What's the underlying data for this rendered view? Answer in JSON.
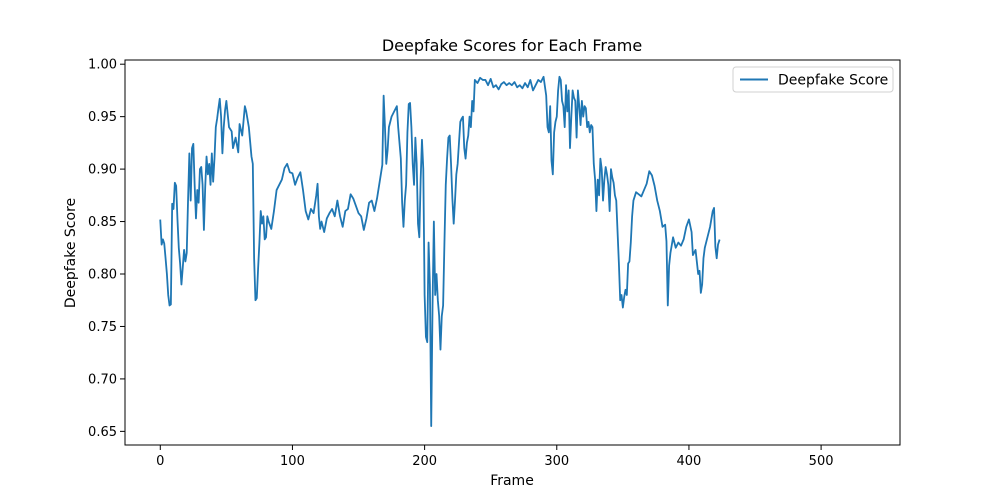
{
  "chart_data": {
    "type": "line",
    "title": "Deepfake Scores for Each Frame",
    "xlabel": "Frame",
    "ylabel": "Deepfake Score",
    "xlim": [
      -26.7,
      559.7
    ],
    "ylim": [
      0.637,
      1.004
    ],
    "xticks": [
      0,
      100,
      200,
      300,
      400,
      500
    ],
    "yticks": [
      0.65,
      0.7,
      0.75,
      0.8,
      0.85,
      0.9,
      0.95,
      1.0
    ],
    "xtick_labels": [
      "0",
      "100",
      "200",
      "300",
      "400",
      "500"
    ],
    "ytick_labels": [
      "0.65",
      "0.70",
      "0.75",
      "0.80",
      "0.85",
      "0.90",
      "0.95",
      "1.00"
    ],
    "grid": false,
    "legend": {
      "position": "top-right",
      "entries": [
        "Deepfake Score"
      ]
    },
    "series": [
      {
        "name": "Deepfake Score",
        "color": "#1f77b4",
        "points": [
          [
            0,
            0.851
          ],
          [
            1,
            0.828
          ],
          [
            2,
            0.833
          ],
          [
            3,
            0.829
          ],
          [
            4,
            0.815
          ],
          [
            5,
            0.8
          ],
          [
            6,
            0.78
          ],
          [
            7,
            0.77
          ],
          [
            8,
            0.771
          ],
          [
            9,
            0.867
          ],
          [
            10,
            0.862
          ],
          [
            11,
            0.887
          ],
          [
            12,
            0.884
          ],
          [
            13,
            0.852
          ],
          [
            14,
            0.825
          ],
          [
            15,
            0.81
          ],
          [
            16,
            0.79
          ],
          [
            17,
            0.806
          ],
          [
            18,
            0.823
          ],
          [
            19,
            0.812
          ],
          [
            20,
            0.82
          ],
          [
            21,
            0.87
          ],
          [
            22,
            0.915
          ],
          [
            23,
            0.87
          ],
          [
            24,
            0.92
          ],
          [
            25,
            0.924
          ],
          [
            26,
            0.885
          ],
          [
            27,
            0.853
          ],
          [
            28,
            0.88
          ],
          [
            29,
            0.868
          ],
          [
            30,
            0.9
          ],
          [
            31,
            0.902
          ],
          [
            32,
            0.885
          ],
          [
            33,
            0.842
          ],
          [
            34,
            0.883
          ],
          [
            35,
            0.912
          ],
          [
            36,
            0.895
          ],
          [
            37,
            0.905
          ],
          [
            38,
            0.885
          ],
          [
            39,
            0.915
          ],
          [
            40,
            0.888
          ],
          [
            41,
            0.91
          ],
          [
            42,
            0.94
          ],
          [
            43,
            0.948
          ],
          [
            44,
            0.958
          ],
          [
            45,
            0.967
          ],
          [
            46,
            0.95
          ],
          [
            47,
            0.915
          ],
          [
            48,
            0.94
          ],
          [
            49,
            0.956
          ],
          [
            50,
            0.965
          ],
          [
            52,
            0.94
          ],
          [
            54,
            0.936
          ],
          [
            55,
            0.92
          ],
          [
            57,
            0.93
          ],
          [
            59,
            0.916
          ],
          [
            60,
            0.943
          ],
          [
            62,
            0.932
          ],
          [
            64,
            0.96
          ],
          [
            65,
            0.955
          ],
          [
            67,
            0.94
          ],
          [
            69,
            0.912
          ],
          [
            70,
            0.905
          ],
          [
            71,
            0.815
          ],
          [
            72,
            0.775
          ],
          [
            73,
            0.777
          ],
          [
            74,
            0.805
          ],
          [
            75,
            0.83
          ],
          [
            76,
            0.86
          ],
          [
            77,
            0.848
          ],
          [
            78,
            0.855
          ],
          [
            79,
            0.833
          ],
          [
            80,
            0.835
          ],
          [
            81,
            0.855
          ],
          [
            82,
            0.85
          ],
          [
            84,
            0.843
          ],
          [
            86,
            0.86
          ],
          [
            88,
            0.88
          ],
          [
            90,
            0.885
          ],
          [
            92,
            0.89
          ],
          [
            94,
            0.901
          ],
          [
            96,
            0.905
          ],
          [
            98,
            0.897
          ],
          [
            100,
            0.896
          ],
          [
            102,
            0.885
          ],
          [
            104,
            0.892
          ],
          [
            106,
            0.897
          ],
          [
            108,
            0.88
          ],
          [
            110,
            0.86
          ],
          [
            112,
            0.852
          ],
          [
            114,
            0.862
          ],
          [
            116,
            0.858
          ],
          [
            118,
            0.875
          ],
          [
            119,
            0.886
          ],
          [
            120,
            0.855
          ],
          [
            121,
            0.843
          ],
          [
            122,
            0.85
          ],
          [
            124,
            0.84
          ],
          [
            126,
            0.853
          ],
          [
            128,
            0.858
          ],
          [
            130,
            0.862
          ],
          [
            132,
            0.855
          ],
          [
            134,
            0.87
          ],
          [
            136,
            0.855
          ],
          [
            138,
            0.845
          ],
          [
            140,
            0.86
          ],
          [
            142,
            0.862
          ],
          [
            144,
            0.876
          ],
          [
            146,
            0.872
          ],
          [
            148,
            0.865
          ],
          [
            150,
            0.858
          ],
          [
            152,
            0.855
          ],
          [
            154,
            0.842
          ],
          [
            156,
            0.853
          ],
          [
            158,
            0.868
          ],
          [
            160,
            0.87
          ],
          [
            162,
            0.86
          ],
          [
            164,
            0.872
          ],
          [
            166,
            0.888
          ],
          [
            168,
            0.904
          ],
          [
            169,
            0.97
          ],
          [
            170,
            0.94
          ],
          [
            171,
            0.905
          ],
          [
            172,
            0.918
          ],
          [
            173,
            0.94
          ],
          [
            175,
            0.95
          ],
          [
            177,
            0.955
          ],
          [
            179,
            0.96
          ],
          [
            180,
            0.94
          ],
          [
            181,
            0.925
          ],
          [
            182,
            0.91
          ],
          [
            183,
            0.868
          ],
          [
            184,
            0.845
          ],
          [
            185,
            0.87
          ],
          [
            186,
            0.885
          ],
          [
            187,
            0.935
          ],
          [
            188,
            0.962
          ],
          [
            189,
            0.963
          ],
          [
            190,
            0.94
          ],
          [
            191,
            0.905
          ],
          [
            192,
            0.885
          ],
          [
            193,
            0.93
          ],
          [
            194,
            0.905
          ],
          [
            195,
            0.848
          ],
          [
            196,
            0.835
          ],
          [
            197,
            0.89
          ],
          [
            198,
            0.928
          ],
          [
            199,
            0.9
          ],
          [
            200,
            0.78
          ],
          [
            201,
            0.74
          ],
          [
            202,
            0.735
          ],
          [
            203,
            0.83
          ],
          [
            204,
            0.79
          ],
          [
            205,
            0.655
          ],
          [
            206,
            0.77
          ],
          [
            207,
            0.85
          ],
          [
            208,
            0.78
          ],
          [
            209,
            0.8
          ],
          [
            210,
            0.775
          ],
          [
            211,
            0.76
          ],
          [
            212,
            0.728
          ],
          [
            213,
            0.76
          ],
          [
            214,
            0.77
          ],
          [
            215,
            0.83
          ],
          [
            216,
            0.885
          ],
          [
            217,
            0.91
          ],
          [
            218,
            0.93
          ],
          [
            219,
            0.932
          ],
          [
            220,
            0.905
          ],
          [
            221,
            0.872
          ],
          [
            222,
            0.848
          ],
          [
            223,
            0.87
          ],
          [
            224,
            0.895
          ],
          [
            225,
            0.905
          ],
          [
            226,
            0.925
          ],
          [
            227,
            0.945
          ],
          [
            228,
            0.948
          ],
          [
            229,
            0.95
          ],
          [
            230,
            0.92
          ],
          [
            231,
            0.91
          ],
          [
            232,
            0.925
          ],
          [
            233,
            0.932
          ],
          [
            234,
            0.95
          ],
          [
            235,
            0.94
          ],
          [
            236,
            0.965
          ],
          [
            237,
            0.955
          ],
          [
            238,
            0.985
          ],
          [
            240,
            0.982
          ],
          [
            242,
            0.987
          ],
          [
            244,
            0.985
          ],
          [
            246,
            0.985
          ],
          [
            248,
            0.98
          ],
          [
            250,
            0.986
          ],
          [
            252,
            0.978
          ],
          [
            254,
            0.98
          ],
          [
            256,
            0.976
          ],
          [
            258,
            0.981
          ],
          [
            260,
            0.983
          ],
          [
            262,
            0.98
          ],
          [
            264,
            0.982
          ],
          [
            266,
            0.98
          ],
          [
            268,
            0.983
          ],
          [
            270,
            0.978
          ],
          [
            272,
            0.98
          ],
          [
            274,
            0.977
          ],
          [
            276,
            0.982
          ],
          [
            278,
            0.978
          ],
          [
            280,
            0.985
          ],
          [
            282,
            0.975
          ],
          [
            284,
            0.98
          ],
          [
            286,
            0.985
          ],
          [
            288,
            0.983
          ],
          [
            290,
            0.988
          ],
          [
            292,
            0.97
          ],
          [
            293,
            0.94
          ],
          [
            294,
            0.935
          ],
          [
            295,
            0.96
          ],
          [
            296,
            0.908
          ],
          [
            297,
            0.895
          ],
          [
            298,
            0.935
          ],
          [
            299,
            0.945
          ],
          [
            300,
            0.95
          ],
          [
            301,
            0.975
          ],
          [
            302,
            0.988
          ],
          [
            303,
            0.985
          ],
          [
            304,
            0.965
          ],
          [
            305,
            0.96
          ],
          [
            306,
            0.94
          ],
          [
            307,
            0.98
          ],
          [
            308,
            0.955
          ],
          [
            309,
            0.975
          ],
          [
            310,
            0.92
          ],
          [
            311,
            0.95
          ],
          [
            312,
            0.975
          ],
          [
            313,
            0.968
          ],
          [
            314,
            0.965
          ],
          [
            315,
            0.93
          ],
          [
            316,
            0.975
          ],
          [
            317,
            0.96
          ],
          [
            318,
            0.942
          ],
          [
            319,
            0.965
          ],
          [
            320,
            0.95
          ],
          [
            321,
            0.96
          ],
          [
            322,
            0.958
          ],
          [
            323,
            0.94
          ],
          [
            324,
            0.945
          ],
          [
            325,
            0.935
          ],
          [
            326,
            0.942
          ],
          [
            327,
            0.94
          ],
          [
            328,
            0.905
          ],
          [
            329,
            0.89
          ],
          [
            330,
            0.86
          ],
          [
            331,
            0.89
          ],
          [
            332,
            0.875
          ],
          [
            333,
            0.91
          ],
          [
            334,
            0.9
          ],
          [
            335,
            0.87
          ],
          [
            336,
            0.89
          ],
          [
            337,
            0.902
          ],
          [
            338,
            0.895
          ],
          [
            339,
            0.885
          ],
          [
            340,
            0.86
          ],
          [
            341,
            0.9
          ],
          [
            342,
            0.892
          ],
          [
            343,
            0.887
          ],
          [
            344,
            0.875
          ],
          [
            345,
            0.87
          ],
          [
            346,
            0.84
          ],
          [
            347,
            0.81
          ],
          [
            348,
            0.775
          ],
          [
            349,
            0.78
          ],
          [
            350,
            0.768
          ],
          [
            351,
            0.778
          ],
          [
            352,
            0.785
          ],
          [
            353,
            0.78
          ],
          [
            354,
            0.81
          ],
          [
            355,
            0.812
          ],
          [
            356,
            0.83
          ],
          [
            357,
            0.855
          ],
          [
            358,
            0.87
          ],
          [
            360,
            0.878
          ],
          [
            362,
            0.876
          ],
          [
            364,
            0.874
          ],
          [
            366,
            0.88
          ],
          [
            368,
            0.886
          ],
          [
            370,
            0.898
          ],
          [
            372,
            0.894
          ],
          [
            374,
            0.884
          ],
          [
            376,
            0.87
          ],
          [
            378,
            0.86
          ],
          [
            380,
            0.845
          ],
          [
            382,
            0.847
          ],
          [
            383,
            0.831
          ],
          [
            384,
            0.77
          ],
          [
            385,
            0.808
          ],
          [
            386,
            0.82
          ],
          [
            388,
            0.835
          ],
          [
            390,
            0.825
          ],
          [
            392,
            0.83
          ],
          [
            394,
            0.827
          ],
          [
            396,
            0.833
          ],
          [
            398,
            0.845
          ],
          [
            400,
            0.852
          ],
          [
            402,
            0.84
          ],
          [
            403,
            0.818
          ],
          [
            405,
            0.823
          ],
          [
            407,
            0.8
          ],
          [
            408,
            0.803
          ],
          [
            409,
            0.782
          ],
          [
            410,
            0.79
          ],
          [
            411,
            0.815
          ],
          [
            412,
            0.825
          ],
          [
            414,
            0.835
          ],
          [
            416,
            0.845
          ],
          [
            418,
            0.86
          ],
          [
            419,
            0.863
          ],
          [
            420,
            0.826
          ],
          [
            421,
            0.815
          ],
          [
            422,
            0.828
          ],
          [
            423,
            0.832
          ]
        ]
      }
    ]
  }
}
